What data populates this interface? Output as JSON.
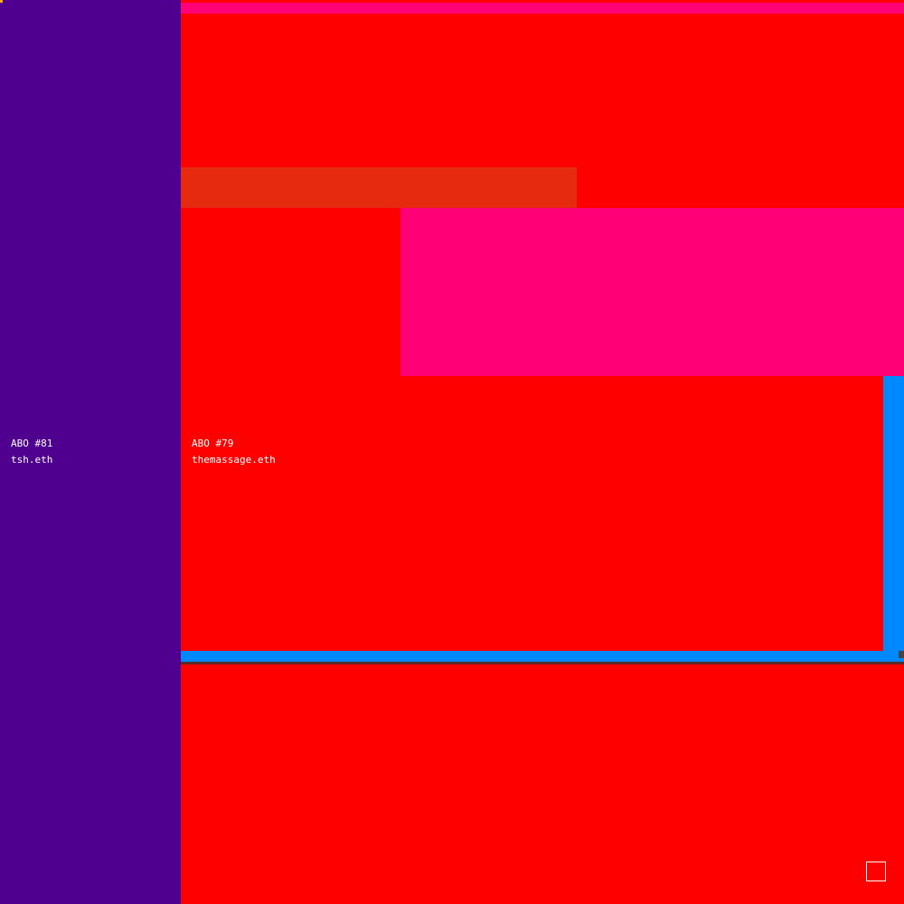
{
  "colors": {
    "purple": "#4f008f",
    "red": "#ff0000",
    "pink": "#ff0077",
    "orange_red": "#e62a10",
    "blue": "#0088ff",
    "gray": "#444444"
  },
  "tiles": [
    {
      "title": "ABO #81",
      "owner": "tsh.eth"
    },
    {
      "title": "ABO #79",
      "owner": "themassage.eth"
    }
  ]
}
